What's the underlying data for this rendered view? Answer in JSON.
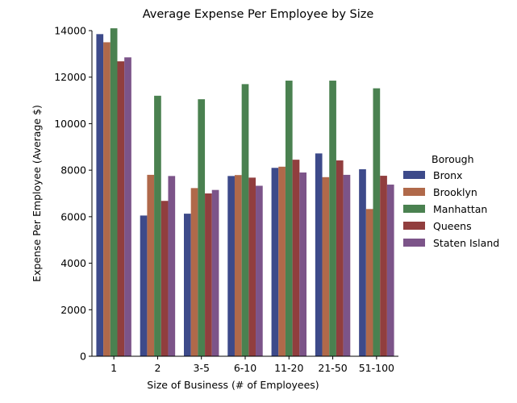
{
  "chart_data": {
    "type": "bar",
    "title": "Average Expense Per Employee by Size",
    "xlabel": "Size of Business (# of Employees)",
    "ylabel": "Expense Per Employee (Average $)",
    "categories": [
      "1",
      "2",
      "3-5",
      "6-10",
      "11-20",
      "21-50",
      "51-100"
    ],
    "ylim": [
      0,
      14000
    ],
    "yticks": [
      0,
      2000,
      4000,
      6000,
      8000,
      10000,
      12000,
      14000
    ],
    "legend": {
      "title": "Borough",
      "placement": "right"
    },
    "grid": false,
    "series": [
      {
        "name": "Bronx",
        "color": "#3d4a8a",
        "values": [
          13850,
          6050,
          6130,
          7750,
          8100,
          8720,
          8040
        ]
      },
      {
        "name": "Brooklyn",
        "color": "#b0694a",
        "values": [
          13500,
          7800,
          7230,
          7790,
          8150,
          7700,
          6330
        ]
      },
      {
        "name": "Manhattan",
        "color": "#4a8150",
        "values": [
          14100,
          11200,
          11050,
          11700,
          11850,
          11850,
          11520
        ]
      },
      {
        "name": "Queens",
        "color": "#913e3e",
        "values": [
          12680,
          6680,
          7000,
          7680,
          8450,
          8420,
          7760
        ]
      },
      {
        "name": "Staten Island",
        "color": "#7c5489",
        "values": [
          12850,
          7750,
          7150,
          7330,
          7900,
          7800,
          7380
        ]
      }
    ]
  }
}
